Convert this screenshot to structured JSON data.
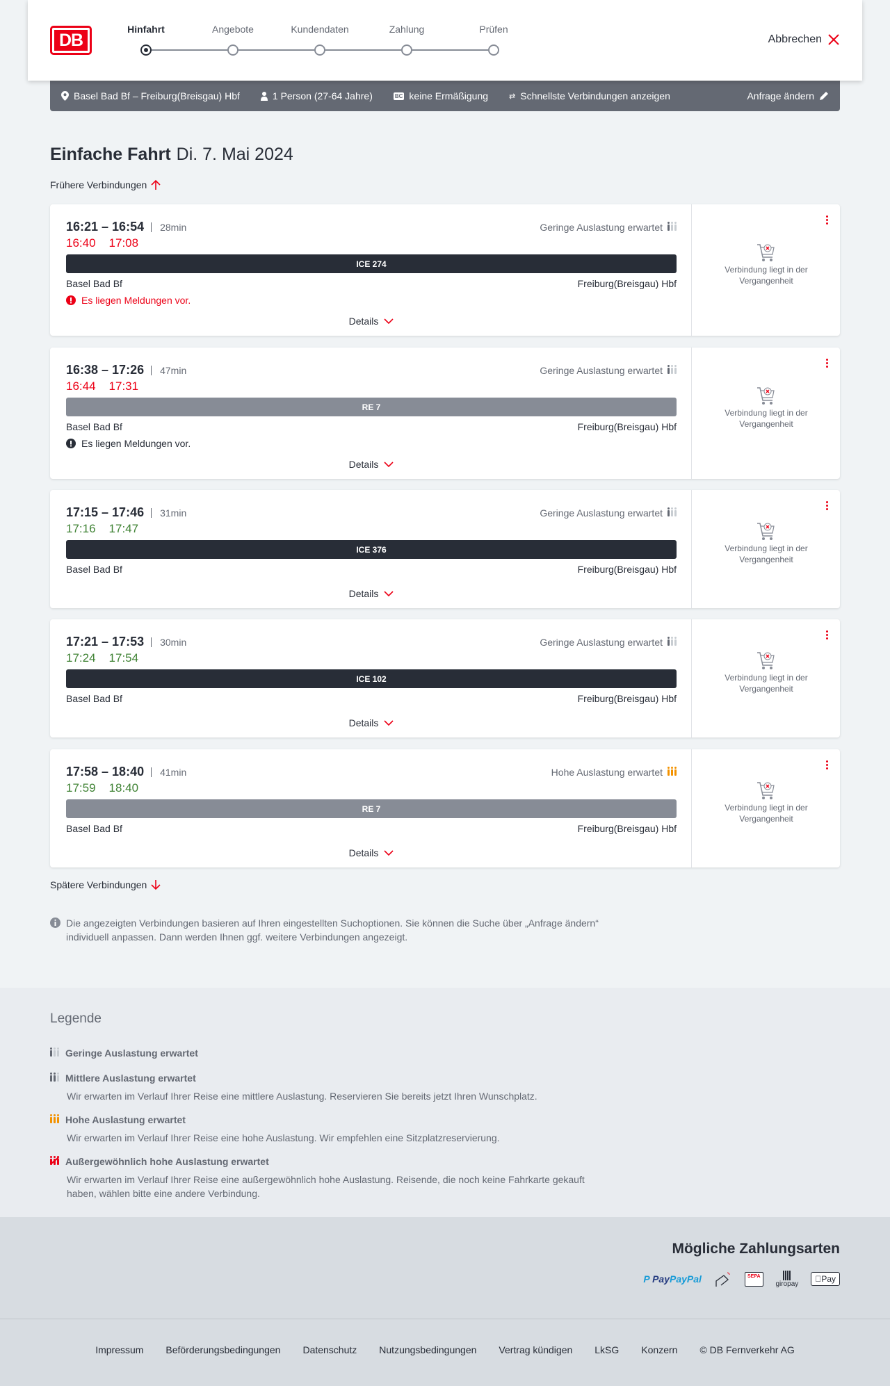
{
  "header": {
    "logo": "DB",
    "steps": [
      {
        "label": "Hinfahrt",
        "active": true
      },
      {
        "label": "Angebote"
      },
      {
        "label": "Kundendaten"
      },
      {
        "label": "Zahlung"
      },
      {
        "label": "Prüfen"
      }
    ],
    "cancel": "Abbrechen"
  },
  "summary": {
    "route": "Basel Bad Bf – Freiburg(Breisgau) Hbf",
    "persons": "1 Person (27-64 Jahre)",
    "bahncard_icon": "BC",
    "discount": "keine Ermäßigung",
    "fastest": "Schnellste Verbindungen anzeigen",
    "change": "Anfrage ändern"
  },
  "page": {
    "title_bold": "Einfache Fahrt",
    "title_date": "Di. 7. Mai 2024",
    "earlier": "Frühere Verbindungen",
    "later": "Spätere Verbindungen",
    "info": "Die angezeigten Verbindungen basieren auf Ihren eingestellten Suchoptionen. Sie können die Suche über „Anfrage ändern“ individuell anpassen. Dann werden Ihnen ggf. weitere Verbindungen angezeigt."
  },
  "colors": {
    "red": "#ec0016",
    "green": "#408335",
    "dark": "#282d37",
    "gray": "#878c96",
    "orange": "#f39200"
  },
  "connections": [
    {
      "times": "16:21 – 16:54",
      "duration": "28min",
      "rt_dep": "16:40",
      "rt_arr": "17:08",
      "delayed": true,
      "occupancy": "Geringe Auslastung erwartet",
      "occ_level": 1,
      "train": "ICE 274",
      "train_type": "ICE",
      "from": "Basel Bad Bf",
      "to": "Freiburg(Breisgau) Hbf",
      "message": "Es liegen Meldungen vor.",
      "message_red": true,
      "details": "Details",
      "side": "Verbindung liegt in der Vergangenheit"
    },
    {
      "times": "16:38 – 17:26",
      "duration": "47min",
      "rt_dep": "16:44",
      "rt_arr": "17:31",
      "delayed": true,
      "occupancy": "Geringe Auslastung erwartet",
      "occ_level": 1,
      "train": "RE 7",
      "train_type": "RE",
      "from": "Basel Bad Bf",
      "to": "Freiburg(Breisgau) Hbf",
      "message": "Es liegen Meldungen vor.",
      "message_red": false,
      "details": "Details",
      "side": "Verbindung liegt in der Vergangenheit"
    },
    {
      "times": "17:15 – 17:46",
      "duration": "31min",
      "rt_dep": "17:16",
      "rt_arr": "17:47",
      "delayed": false,
      "occupancy": "Geringe Auslastung erwartet",
      "occ_level": 1,
      "train": "ICE 376",
      "train_type": "ICE",
      "from": "Basel Bad Bf",
      "to": "Freiburg(Breisgau) Hbf",
      "details": "Details",
      "side": "Verbindung liegt in der Vergangenheit"
    },
    {
      "times": "17:21 – 17:53",
      "duration": "30min",
      "rt_dep": "17:24",
      "rt_arr": "17:54",
      "delayed": false,
      "occupancy": "Geringe Auslastung erwartet",
      "occ_level": 1,
      "train": "ICE 102",
      "train_type": "ICE",
      "from": "Basel Bad Bf",
      "to": "Freiburg(Breisgau) Hbf",
      "details": "Details",
      "side": "Verbindung liegt in der Vergangenheit"
    },
    {
      "times": "17:58 – 18:40",
      "duration": "41min",
      "rt_dep": "17:59",
      "rt_arr": "18:40",
      "delayed": false,
      "occupancy": "Hohe Auslastung erwartet",
      "occ_level": 3,
      "train": "RE 7",
      "train_type": "RE",
      "from": "Basel Bad Bf",
      "to": "Freiburg(Breisgau) Hbf",
      "details": "Details",
      "side": "Verbindung liegt in der Vergangenheit"
    }
  ],
  "legend": {
    "title": "Legende",
    "items": [
      {
        "title": "Geringe Auslastung erwartet",
        "level": 1
      },
      {
        "title": "Mittlere Auslastung erwartet",
        "level": 2,
        "desc": "Wir erwarten im Verlauf Ihrer Reise eine mittlere Auslastung. Reservieren Sie bereits jetzt Ihren Wunschplatz."
      },
      {
        "title": "Hohe Auslastung erwartet",
        "level": 3,
        "desc": "Wir erwarten im Verlauf Ihrer Reise eine hohe Auslastung. Wir empfehlen eine Sitzplatzreservierung."
      },
      {
        "title": "Außergewöhnlich hohe Auslastung erwartet",
        "level": 4,
        "desc": "Wir erwarten im Verlauf Ihrer Reise eine außergewöhnlich hohe Auslastung. Reisende, die noch keine Fahrkarte gekauft haben, wählen bitte eine andere Verbindung."
      }
    ]
  },
  "payment": {
    "title": "Mögliche Zahlungsarten",
    "methods": [
      "PayPal",
      "Kreditkarte",
      "SEPA",
      "giropay",
      "Pay"
    ]
  },
  "footer": {
    "links": [
      "Impressum",
      "Beförderungsbedingungen",
      "Datenschutz",
      "Nutzungsbedingungen",
      "Vertrag kündigen",
      "LkSG",
      "Konzern",
      "© DB Fernverkehr AG"
    ]
  }
}
